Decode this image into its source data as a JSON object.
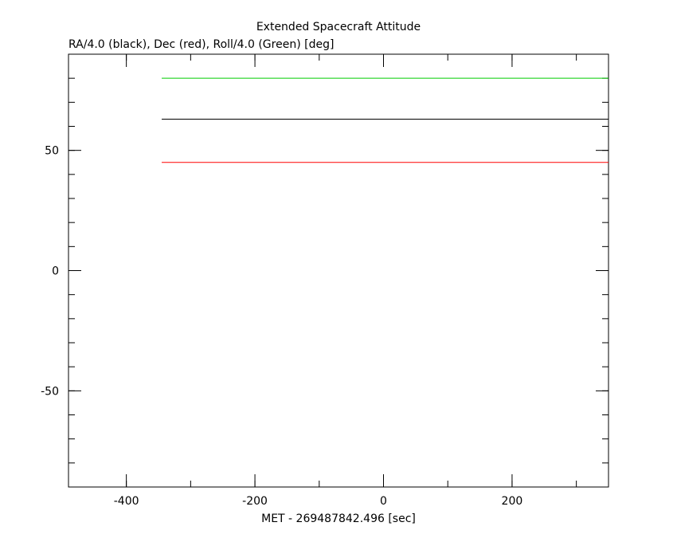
{
  "chart_data": {
    "type": "line",
    "title": "Extended Spacecraft Attitude",
    "subtitle": "RA/4.0 (black), Dec (red), Roll/4.0 (Green) [deg]",
    "x_label": "MET - 269487842.496 [sec]",
    "x": [
      -345,
      350
    ],
    "series": [
      {
        "color": "#000000",
        "values": [
          63,
          63
        ]
      },
      {
        "color": "#ff0000",
        "values": [
          45,
          45
        ]
      },
      {
        "color": "#00cc00",
        "values": [
          80,
          80
        ]
      }
    ],
    "xlim": [
      -490,
      350
    ],
    "xticks": [
      -400,
      -200,
      0,
      200
    ],
    "xminorticks": [
      -400,
      -300,
      -200,
      -100,
      0,
      100,
      200,
      300
    ],
    "ylim": [
      -90,
      90
    ],
    "yticks": [
      -50,
      0,
      50
    ],
    "yminorticks": [
      -80,
      -70,
      -60,
      -50,
      -40,
      -30,
      -20,
      -10,
      0,
      10,
      20,
      30,
      40,
      50,
      60,
      70,
      80
    ],
    "grid": false
  }
}
